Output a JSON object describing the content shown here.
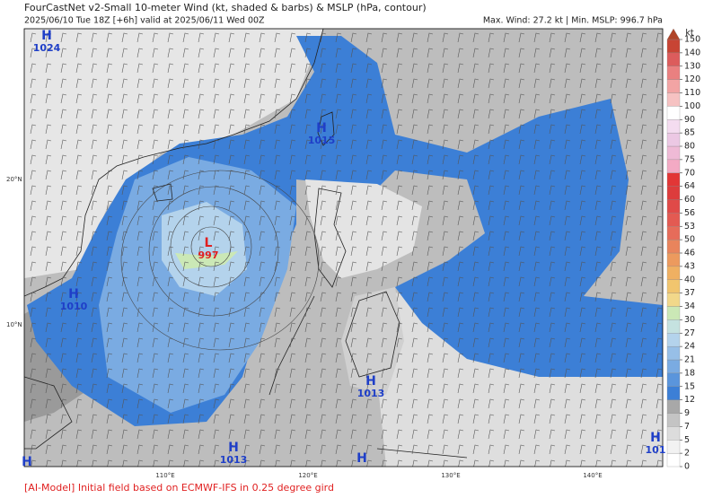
{
  "header": {
    "title": "FourCastNet v2-Small 10-meter Wind (kt, shaded & barbs) & MSLP (hPa, contour)",
    "subtitle": "2025/06/10 Tue 18Z [+6h] valid at 2025/06/11 Wed 00Z",
    "stats": "Max. Wind: 27.2 kt | Min. MSLP: 996.7 hPa"
  },
  "map": {
    "lat_labels": [
      "20°N",
      "10°N"
    ],
    "lon_labels": [
      "110°E",
      "120°E",
      "130°E",
      "140°E"
    ],
    "systems": [
      {
        "type": "H",
        "value": "1024"
      },
      {
        "type": "H",
        "value": "1015"
      },
      {
        "type": "L",
        "value": "997"
      },
      {
        "type": "H",
        "value": "1010"
      },
      {
        "type": "H",
        "value": "1013"
      },
      {
        "type": "H",
        "value": "1013"
      },
      {
        "type": "H"
      },
      {
        "type": "H"
      },
      {
        "type": "H",
        "value": "101"
      }
    ]
  },
  "colorbar": {
    "unit": "kt",
    "ticks": [
      0,
      2,
      5,
      7,
      9,
      12,
      15,
      18,
      21,
      24,
      27,
      30,
      34,
      37,
      40,
      43,
      46,
      50,
      53,
      56,
      60,
      64,
      70,
      75,
      80,
      85,
      90,
      100,
      110,
      120,
      130,
      140,
      150
    ],
    "colors": [
      "#ffffff",
      "#f2f2f2",
      "#dcdcdc",
      "#c4c4c4",
      "#a8a8a8",
      "#3c7fd6",
      "#5a95dc",
      "#7aabe2",
      "#97bfe7",
      "#b4d3ec",
      "#c5e2e0",
      "#cbe8b6",
      "#f2d88a",
      "#f1c56e",
      "#efb062",
      "#ec9a5e",
      "#e9845c",
      "#e66c5a",
      "#e35a52",
      "#e04a48",
      "#dd3c3c",
      "#e23636",
      "#f3aac4",
      "#efbad6",
      "#ecc8e4",
      "#f4dcf0",
      "#ffffff",
      "#f6c2c2",
      "#f2a4a4",
      "#ea8080",
      "#dc5c5c",
      "#c84434"
    ]
  },
  "footer": "[AI-Model] Initial field based on ECMWF-IFS in 0.25 degree gird"
}
